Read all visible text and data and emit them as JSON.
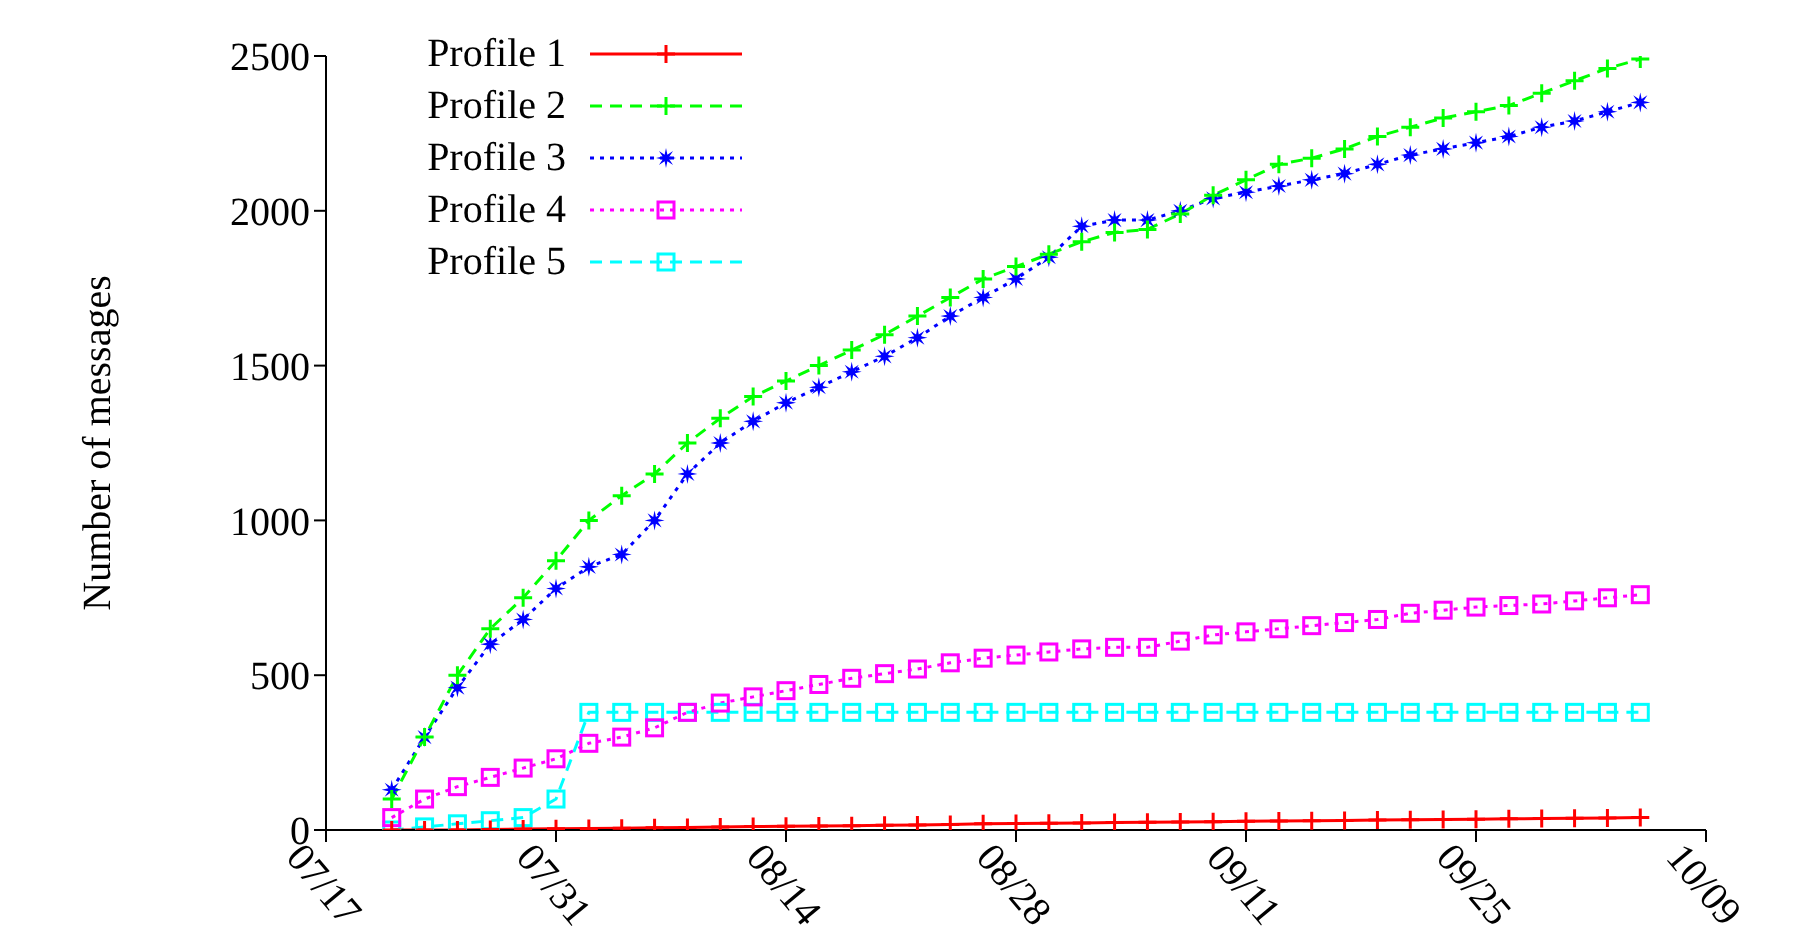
{
  "chart_data": {
    "type": "line",
    "ylabel": "Number of messages",
    "x": [
      "--07-21",
      "--07-23",
      "--07-25",
      "--07-27",
      "--07-29",
      "--07-31",
      "--08-02",
      "--08-04",
      "--08-06",
      "--08-08",
      "--08-10",
      "--08-12",
      "--08-14",
      "--08-16",
      "--08-18",
      "--08-20",
      "--08-22",
      "--08-24",
      "--08-26",
      "--08-28",
      "--08-30",
      "--09-01",
      "--09-03",
      "--09-05",
      "--09-07",
      "--09-09",
      "--09-11",
      "--09-13",
      "--09-15",
      "--09-17",
      "--09-19",
      "--09-21",
      "--09-23",
      "--09-25",
      "--09-27",
      "--09-29",
      "--10-01",
      "--10-03",
      "--10-05"
    ],
    "series": [
      {
        "name": "Profile 1",
        "color": "#ff0000",
        "marker": "cross",
        "line_style": "solid",
        "values": [
          0,
          0,
          0,
          2,
          3,
          4,
          5,
          6,
          7,
          8,
          10,
          11,
          12,
          13,
          14,
          15,
          16,
          18,
          20,
          21,
          22,
          23,
          24,
          25,
          26,
          27,
          28,
          29,
          30,
          31,
          32,
          33,
          34,
          35,
          36,
          37,
          38,
          39,
          40
        ]
      },
      {
        "name": "Profile 2",
        "color": "#00ff00",
        "marker": "cross",
        "line_style": "dashed",
        "values": [
          100,
          300,
          500,
          650,
          750,
          870,
          1000,
          1080,
          1150,
          1250,
          1330,
          1400,
          1450,
          1500,
          1550,
          1600,
          1660,
          1720,
          1780,
          1820,
          1860,
          1900,
          1930,
          1940,
          1990,
          2050,
          2100,
          2150,
          2170,
          2200,
          2240,
          2270,
          2300,
          2320,
          2340,
          2380,
          2420,
          2460,
          2490
        ]
      },
      {
        "name": "Profile 3",
        "color": "#0000ff",
        "marker": "star",
        "line_style": "dotted",
        "values": [
          130,
          300,
          460,
          600,
          680,
          780,
          850,
          890,
          1000,
          1150,
          1250,
          1320,
          1380,
          1430,
          1480,
          1530,
          1590,
          1660,
          1720,
          1780,
          1850,
          1950,
          1970,
          1970,
          2000,
          2040,
          2060,
          2080,
          2100,
          2120,
          2150,
          2180,
          2200,
          2220,
          2240,
          2270,
          2290,
          2320,
          2350
        ]
      },
      {
        "name": "Profile 4",
        "color": "#ff00ff",
        "marker": "square",
        "line_style": "dotted",
        "values": [
          40,
          100,
          140,
          170,
          200,
          230,
          280,
          300,
          330,
          380,
          410,
          430,
          450,
          470,
          490,
          505,
          520,
          540,
          555,
          565,
          575,
          585,
          590,
          590,
          610,
          630,
          640,
          650,
          660,
          670,
          680,
          700,
          710,
          720,
          725,
          730,
          740,
          750,
          760
        ]
      },
      {
        "name": "Profile 5",
        "color": "#00ffff",
        "marker": "square",
        "line_style": "dashed",
        "values": [
          0,
          10,
          20,
          30,
          40,
          100,
          380,
          380,
          380,
          380,
          380,
          380,
          380,
          380,
          380,
          380,
          380,
          380,
          380,
          380,
          380,
          380,
          380,
          380,
          380,
          380,
          380,
          380,
          380,
          380,
          380,
          380,
          380,
          380,
          380,
          380,
          380,
          380,
          380
        ]
      }
    ],
    "xlim": [
      "--07-17",
      "--10-09"
    ],
    "xticks": [
      {
        "value": "--07-17",
        "label": "07/17"
      },
      {
        "value": "--07-31",
        "label": "07/31"
      },
      {
        "value": "--08-14",
        "label": "08/14"
      },
      {
        "value": "--08-28",
        "label": "08/28"
      },
      {
        "value": "--09-11",
        "label": "09/11"
      },
      {
        "value": "--09-25",
        "label": "09/25"
      },
      {
        "value": "--10-09",
        "label": "10/09"
      }
    ],
    "ylim": [
      0,
      2500
    ],
    "yticks": [
      0,
      500,
      1000,
      1500,
      2000,
      2500
    ],
    "grid": false,
    "legend": "top left"
  }
}
